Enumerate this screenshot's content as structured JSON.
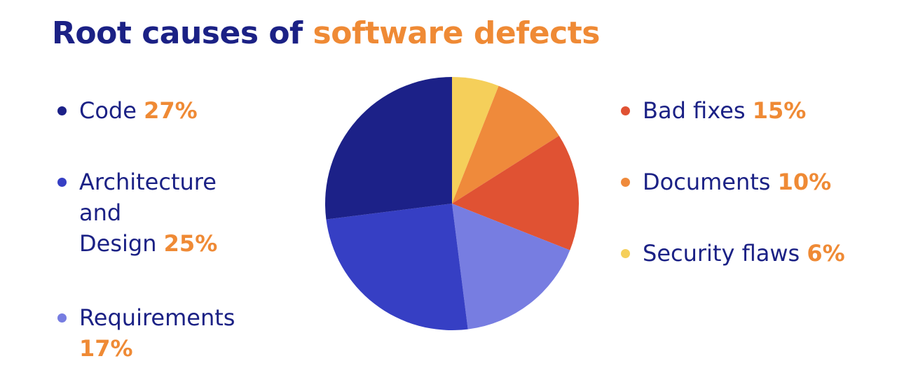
{
  "title": {
    "part1": "Root causes of",
    "part2": "software defects"
  },
  "colors": {
    "title_primary": "#1b2185",
    "title_accent": "#ef8a35",
    "percent": "#ef8a35"
  },
  "chart_data": {
    "type": "pie",
    "title": "Root causes of software defects",
    "slices": [
      {
        "label": "Security flaws",
        "value": 6,
        "display": "6%",
        "color": "#f5cf5a"
      },
      {
        "label": "Documents",
        "value": 10,
        "display": "10%",
        "color": "#ef8a3b"
      },
      {
        "label": "Bad fixes",
        "value": 15,
        "display": "15%",
        "color": "#e05233"
      },
      {
        "label": "Requirements",
        "value": 17,
        "display": "17%",
        "color": "#777de1"
      },
      {
        "label": "Architecture\nand\nDesign",
        "value": 25,
        "display": "25%",
        "color": "#363fc4"
      },
      {
        "label": "Code",
        "value": 27,
        "display": "27%",
        "color": "#1c2188"
      }
    ]
  },
  "legend": {
    "left": [
      {
        "label": "Code",
        "pct": "27%",
        "color": "#1c2188"
      },
      {
        "label": "Architecture\nand\nDesign ",
        "pct": "25%",
        "color": "#363fc4"
      },
      {
        "label": "Requirements",
        "pct": "17%",
        "color": "#777de1"
      }
    ],
    "right": [
      {
        "label": "Bad fixes",
        "pct": "15%",
        "color": "#e05233"
      },
      {
        "label": "Documents",
        "pct": "10%",
        "color": "#ef8a3b"
      },
      {
        "label": "Security flaws",
        "pct": "6%",
        "color": "#f5cf5a"
      }
    ]
  }
}
